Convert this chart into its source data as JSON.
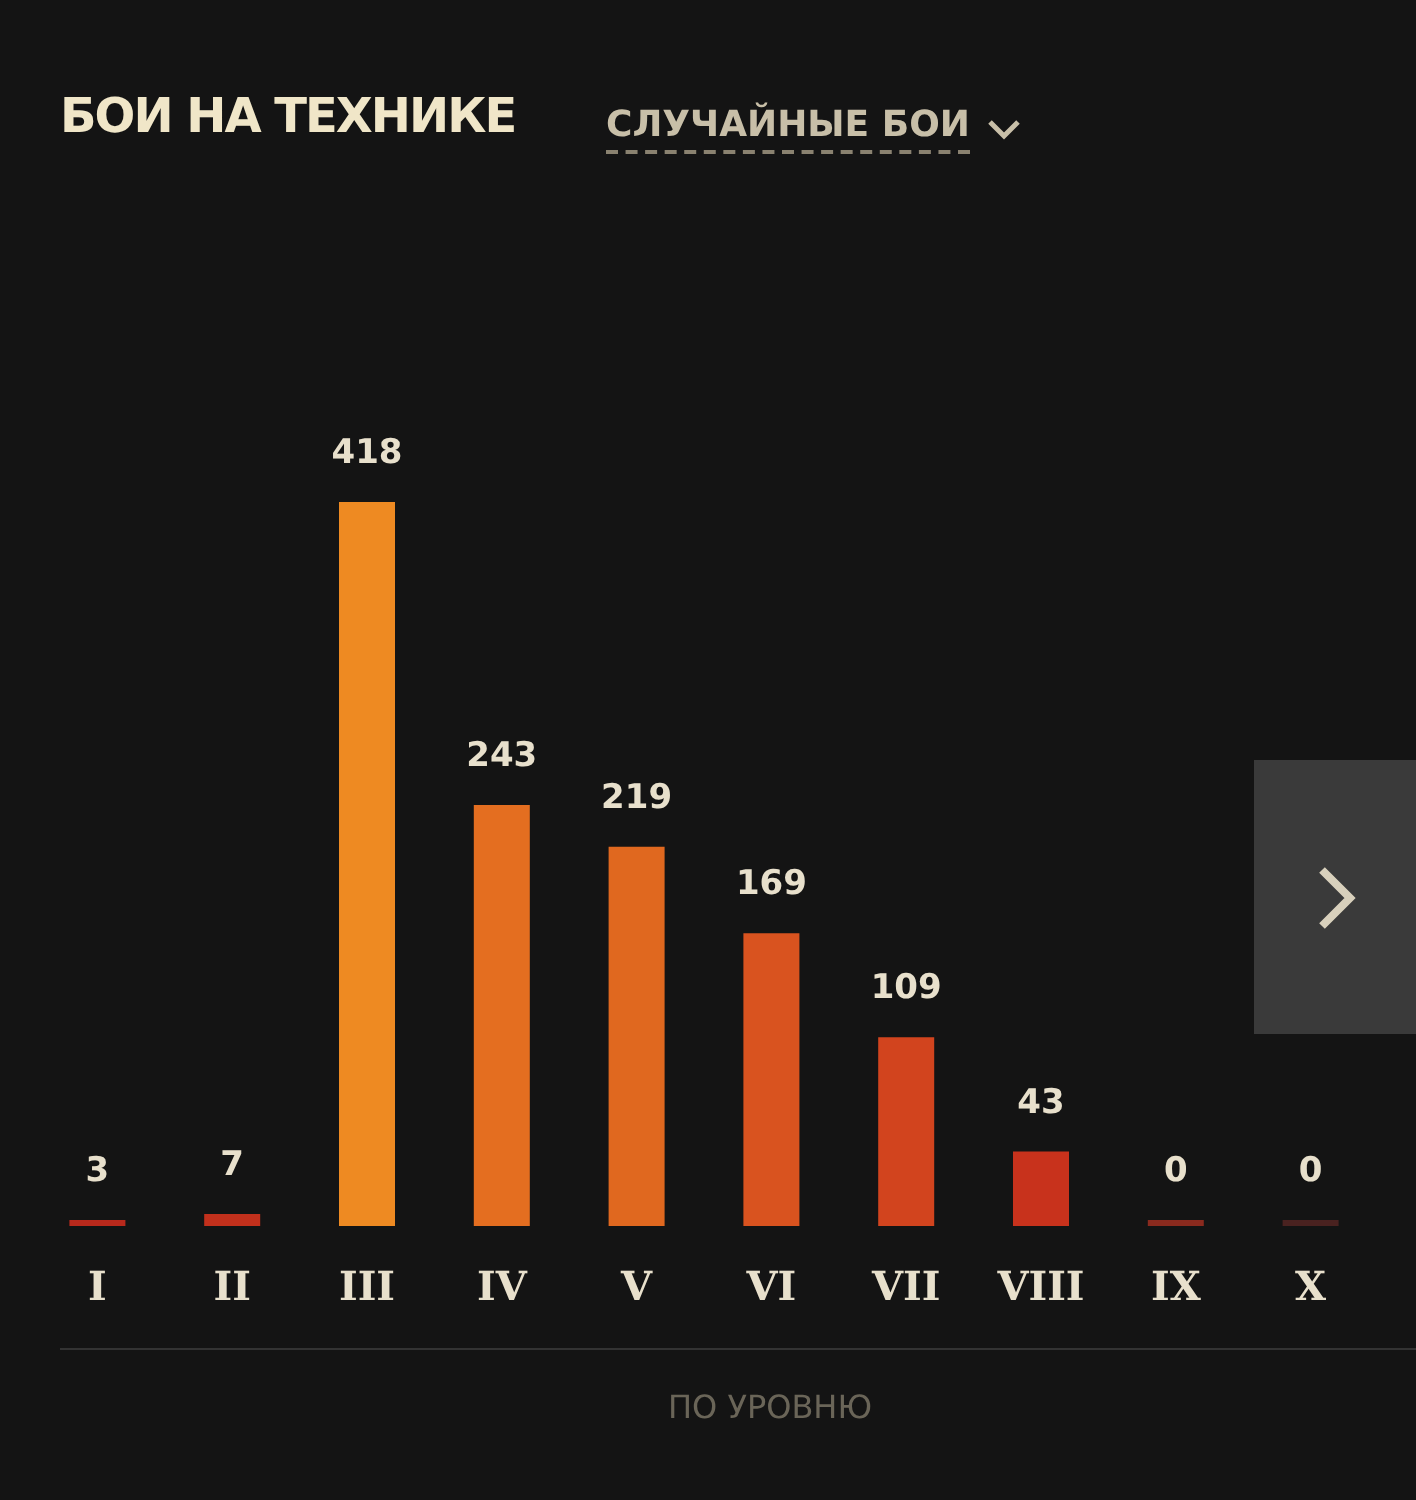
{
  "chart_data": {
    "type": "bar",
    "title": "БОИ НА ТЕХНИКЕ",
    "subtitle": "СЛУЧАЙНЫЕ БОИ",
    "categories": [
      "I",
      "II",
      "III",
      "IV",
      "V",
      "VI",
      "VII",
      "VIII",
      "IX",
      "X"
    ],
    "values": [
      3,
      7,
      418,
      243,
      219,
      169,
      109,
      43,
      0,
      0
    ],
    "colors": [
      "#b8291c",
      "#c2301c",
      "#ee8a22",
      "#e46e20",
      "#e0681f",
      "#d9531f",
      "#d2441e",
      "#c8321c",
      "#8a2a1e",
      "#4a2220"
    ],
    "data_labels": true,
    "annotations": [
      "ПО УРОВНЮ"
    ]
  }
}
